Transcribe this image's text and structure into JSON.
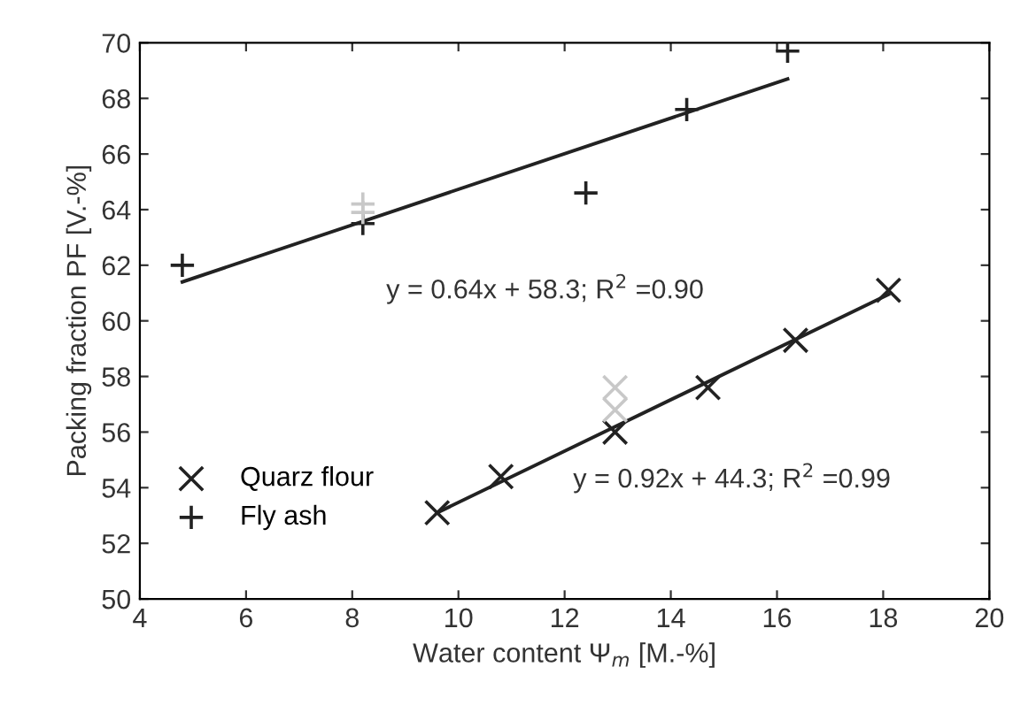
{
  "chart_data": {
    "type": "scatter",
    "xlabel": "Water content Ψ$_{m}$ [M.-%]",
    "ylabel": "Packing fraction PF [V.-%]",
    "xlim": [
      4,
      20
    ],
    "xticks": [
      4,
      6,
      8,
      10,
      12,
      14,
      16,
      18,
      20
    ],
    "ylim": [
      50,
      70
    ],
    "yticks": [
      50,
      52,
      54,
      56,
      58,
      60,
      62,
      64,
      66,
      68,
      70
    ],
    "grid": false,
    "legend": "bottom left",
    "series": [
      {
        "name": "Quarz flour",
        "color": "#222222",
        "marker": "cross",
        "x": [
          9.6,
          10.8,
          12.95,
          14.7,
          16.35,
          18.1
        ],
        "values": [
          53.1,
          54.4,
          56.0,
          57.6,
          59.3,
          61.1
        ]
      },
      {
        "name": "Fly ash",
        "color": "#222222",
        "marker": "plus",
        "x": [
          4.8,
          8.2,
          12.4,
          14.3,
          16.2
        ],
        "values": [
          62.0,
          63.5,
          64.6,
          67.6,
          69.7
        ]
      },
      {
        "color": "#c8c8c8",
        "marker": "cross",
        "x": [
          12.95,
          12.95
        ],
        "values": [
          57.6,
          56.8
        ]
      },
      {
        "color": "#c8c8c8",
        "marker": "plus",
        "x": [
          8.2,
          8.2
        ],
        "values": [
          64.2,
          63.9
        ]
      },
      {
        "type": "line",
        "color": "#222222",
        "x": [
          4.8,
          16.2
        ],
        "values": [
          61.4,
          68.7
        ]
      },
      {
        "type": "line",
        "color": "#222222",
        "x": [
          9.6,
          18.1
        ],
        "values": [
          53.1,
          60.95
        ]
      }
    ],
    "annotations": [
      "y = 0.64x + 58.3; R$^{2}$ =0.90",
      "y = 0.92x + 44.3; R$^{2}$ =0.99"
    ]
  }
}
